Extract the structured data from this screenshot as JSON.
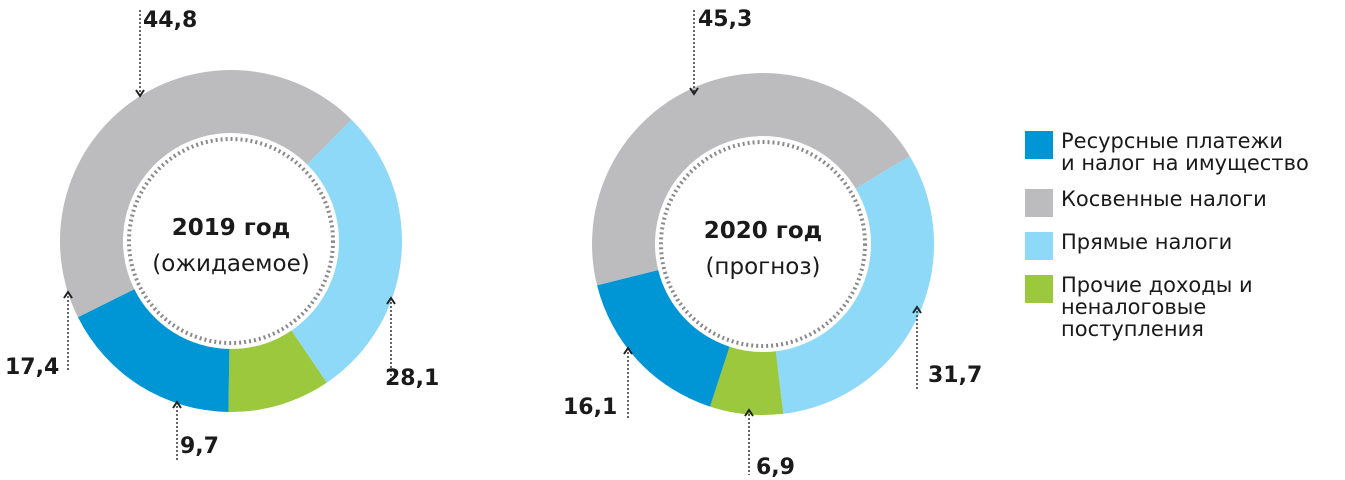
{
  "chart_data": [
    {
      "type": "pie",
      "title": "2019 год",
      "subtitle": "(ожидаемое)",
      "categories": [
        "Косвенные налоги",
        "Прямые налоги",
        "Прочие доходы и неналоговые поступления",
        "Ресурсные платежи и налог на имущество"
      ],
      "values": [
        44.8,
        28.1,
        9.7,
        17.4
      ],
      "labels": [
        "44,8",
        "28,1",
        "9,7",
        "17,4"
      ]
    },
    {
      "type": "pie",
      "title": "2020 год",
      "subtitle": "(прогноз)",
      "categories": [
        "Косвенные налоги",
        "Прямые налоги",
        "Прочие доходы и неналоговые поступления",
        "Ресурсные платежи и налог на имущество"
      ],
      "values": [
        45.3,
        31.7,
        6.9,
        16.1
      ],
      "labels": [
        "45,3",
        "31,7",
        "6,9",
        "16,1"
      ]
    }
  ],
  "legend": [
    {
      "label": "Ресурсные платежи\nи налог на имущество",
      "color": "#0096d6"
    },
    {
      "label": "Косвенные налоги",
      "color": "#bcbcbe"
    },
    {
      "label": "Прямые налоги",
      "color": "#8ed8f8"
    },
    {
      "label": "Прочие доходы и\nненалоговые\nпоступления",
      "color": "#9bc83c"
    }
  ],
  "colors": [
    "#bcbcbe",
    "#8ed8f8",
    "#9bc83c",
    "#0096d6"
  ]
}
